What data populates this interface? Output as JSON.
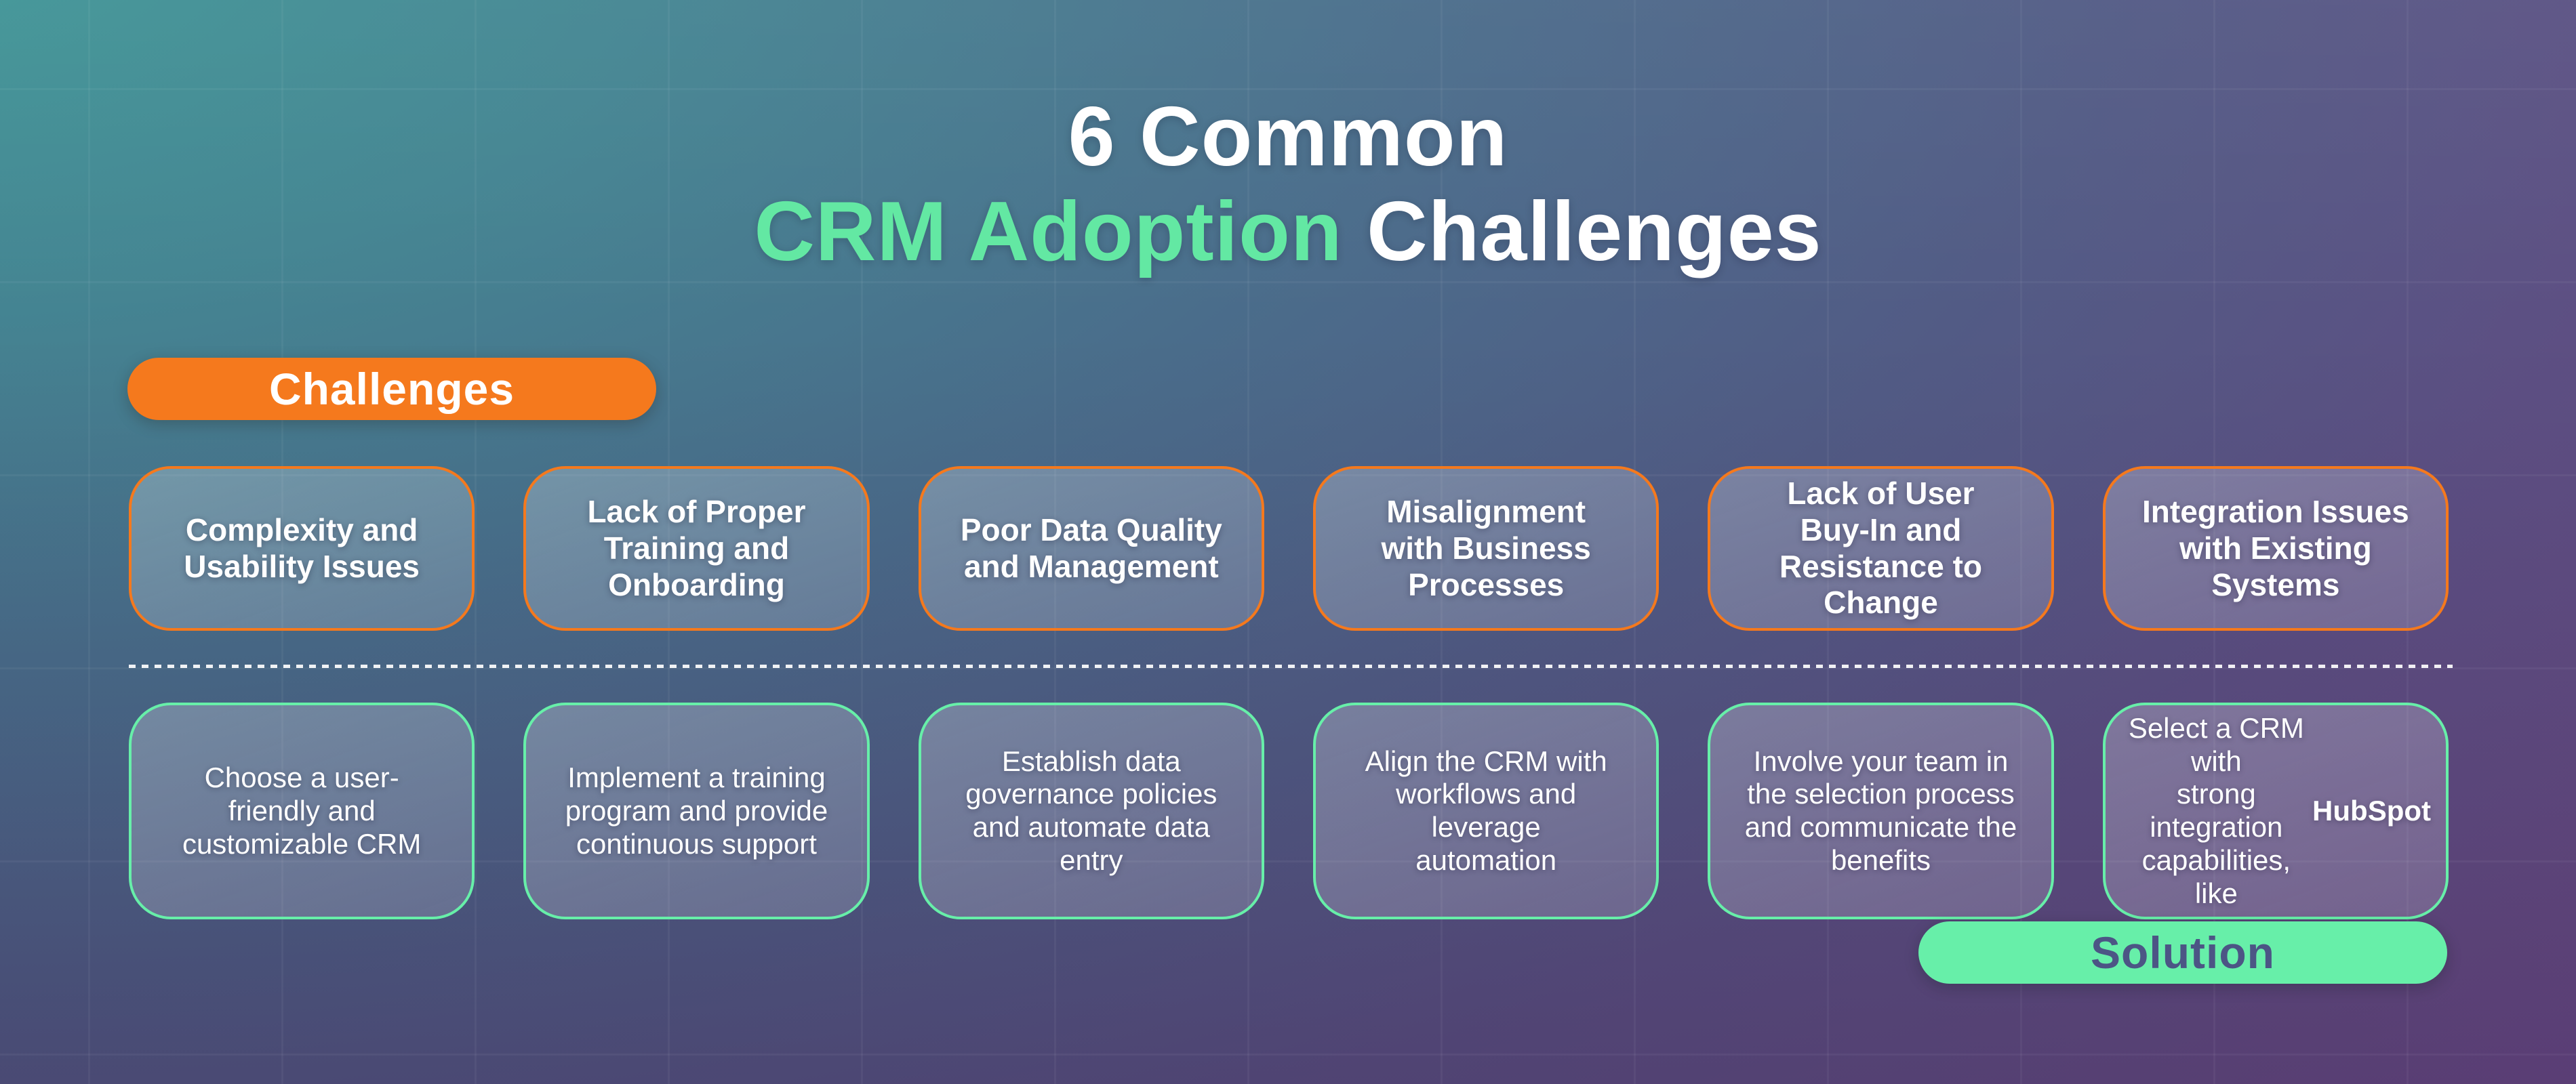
{
  "title": {
    "line1": "6 Common",
    "line2_highlight": "CRM Adoption",
    "line2_rest": "Challenges"
  },
  "badges": {
    "challenges": "Challenges",
    "solution": "Solution"
  },
  "challenges": [
    {
      "title": "Complexity and\nUsability Issues"
    },
    {
      "title": "Lack of Proper\nTraining and\nOnboarding"
    },
    {
      "title": "Poor Data Quality\nand Management"
    },
    {
      "title": "Misalignment\nwith Business\nProcesses"
    },
    {
      "title": "Lack of User\nBuy-In and\nResistance to Change"
    },
    {
      "title": "Integration Issues\nwith Existing\nSystems"
    }
  ],
  "solutions": [
    {
      "text": "Choose a user-\nfriendly and\ncustomizable CRM"
    },
    {
      "text": "Implement a training\nprogram and provide\ncontinuous support"
    },
    {
      "text": "Establish data\ngovernance policies\nand automate data\nentry"
    },
    {
      "text": "Align the CRM with\nworkflows and\nleverage\nautomation"
    },
    {
      "text": "Involve your team in\nthe selection process\nand communicate the\nbenefits"
    },
    {
      "text": "Select a CRM with\nstrong integration\ncapabilities, like",
      "highlight": "HubSpot"
    }
  ],
  "colors": {
    "accent-orange": "#f5791d",
    "accent-mint": "#67efa9",
    "title-highlight": "#63e8a3",
    "solution-badge-text": "#4c5585",
    "divider-dot": "#ffffff"
  }
}
